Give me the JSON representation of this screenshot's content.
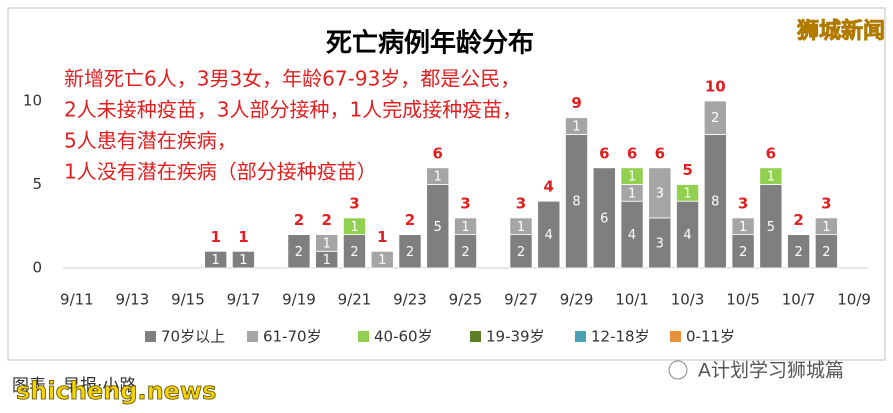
{
  "chart_data": {
    "type": "bar",
    "stacked": true,
    "title": "死亡病例年龄分布",
    "annotation": [
      "新增死亡6人，3男3女，年龄67-93岁，都是公民，",
      "2人未接种疫苗，3人部分接种，1人完成接种疫苗，",
      "5人患有潜在疾病，",
      "1人没有潜在疾病（部分接种疫苗）"
    ],
    "categories": [
      "9/11",
      null,
      "9/13",
      null,
      "9/15",
      null,
      "9/17",
      null,
      "9/19",
      null,
      "9/21",
      null,
      "9/23",
      null,
      "9/25",
      null,
      "9/27",
      null,
      "9/29",
      null,
      "10/1",
      null,
      "10/3",
      null,
      "10/5",
      null,
      "10/7",
      null,
      "10/9"
    ],
    "series": [
      {
        "name": "70岁以上",
        "color": "#7f7f7f",
        "values": [
          null,
          null,
          null,
          null,
          null,
          1,
          1,
          null,
          2,
          1,
          2,
          null,
          2,
          5,
          2,
          null,
          2,
          4,
          8,
          6,
          4,
          3,
          4,
          8,
          2,
          5,
          2,
          2,
          null
        ]
      },
      {
        "name": "61-70岁",
        "color": "#a5a5a5",
        "values": [
          null,
          null,
          null,
          null,
          null,
          null,
          null,
          null,
          null,
          1,
          null,
          1,
          null,
          1,
          1,
          null,
          1,
          null,
          1,
          null,
          1,
          3,
          null,
          2,
          1,
          null,
          null,
          1,
          null
        ]
      },
      {
        "name": "40-60岁",
        "color": "#92d050",
        "values": [
          null,
          null,
          null,
          null,
          null,
          null,
          null,
          null,
          null,
          null,
          1,
          null,
          null,
          null,
          null,
          null,
          null,
          null,
          null,
          null,
          1,
          null,
          1,
          null,
          null,
          1,
          null,
          null,
          null
        ]
      },
      {
        "name": "19-39岁",
        "color": "#5e7f2a",
        "values": [
          null,
          null,
          null,
          null,
          null,
          null,
          null,
          null,
          null,
          null,
          null,
          null,
          null,
          null,
          null,
          null,
          null,
          null,
          null,
          null,
          null,
          null,
          null,
          null,
          null,
          null,
          null,
          null,
          null
        ]
      },
      {
        "name": "12-18岁",
        "color": "#4aa0b5",
        "values": [
          null,
          null,
          null,
          null,
          null,
          null,
          null,
          null,
          null,
          null,
          null,
          null,
          null,
          null,
          null,
          null,
          null,
          null,
          null,
          null,
          null,
          null,
          null,
          null,
          null,
          null,
          null,
          null,
          null
        ]
      },
      {
        "name": "0-11岁",
        "color": "#e8903a",
        "values": [
          null,
          null,
          null,
          null,
          null,
          null,
          null,
          null,
          null,
          null,
          null,
          null,
          null,
          null,
          null,
          null,
          null,
          null,
          null,
          null,
          null,
          null,
          null,
          null,
          null,
          null,
          null,
          null,
          null
        ]
      }
    ],
    "totals": [
      null,
      null,
      null,
      null,
      null,
      1,
      1,
      null,
      2,
      2,
      3,
      1,
      2,
      6,
      3,
      null,
      3,
      4,
      9,
      6,
      6,
      6,
      5,
      10,
      3,
      6,
      2,
      3,
      null
    ],
    "totals_color": "#e02020",
    "ylim": [
      0,
      10
    ],
    "yticks": [
      0,
      5,
      10
    ],
    "grid": false,
    "legend": "bottom"
  },
  "watermark": "狮城新闻",
  "credit": "图表：早报·小路",
  "site": "shicheng.news",
  "account": "A计划学习狮城篇"
}
